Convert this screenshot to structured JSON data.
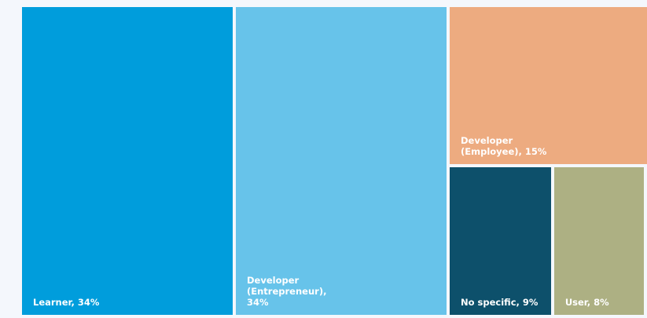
{
  "chart_data": {
    "type": "treemap",
    "values": [
      34,
      34,
      15,
      9,
      8
    ],
    "value_labels": [
      "Learner, 34%",
      "Developer (Entrepreneur), 34%",
      "Developer (Employee), 15%",
      "No specific, 9%",
      "User, 8%"
    ],
    "colors": [
      "#009ddc",
      "#67c3ea",
      "#edab80",
      "#0d506b",
      "#adb083"
    ]
  }
}
